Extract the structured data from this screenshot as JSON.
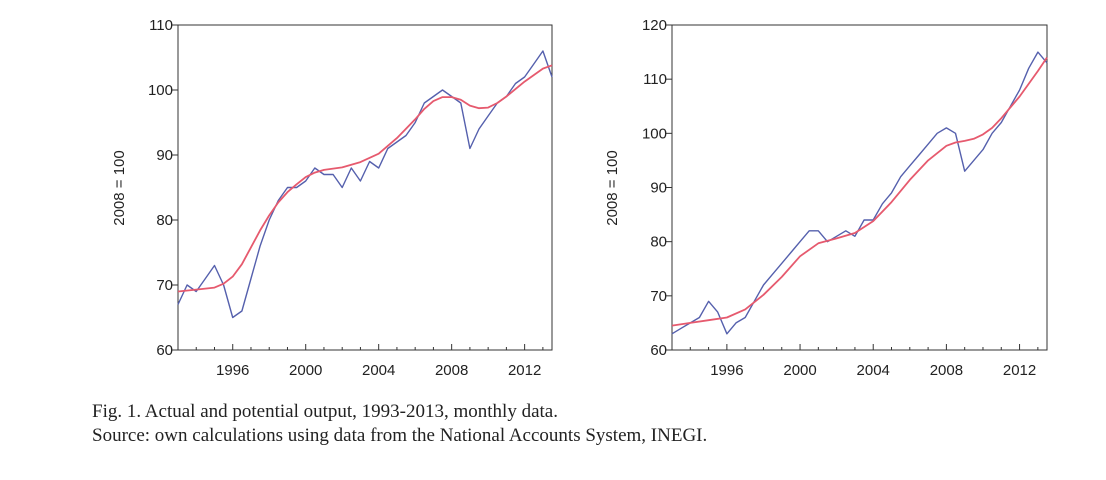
{
  "chart_data": [
    {
      "type": "line",
      "title": "",
      "xlabel": "",
      "ylabel": "2008 = 100",
      "xlim": [
        1993,
        2013.5
      ],
      "ylim": [
        60,
        110
      ],
      "xticks": [
        "1996",
        "2000",
        "2004",
        "2008",
        "2012"
      ],
      "yticks": [
        "60",
        "70",
        "80",
        "90",
        "100",
        "110"
      ],
      "series": [
        {
          "name": "Actual output",
          "color": "#5560ad",
          "x": [
            1993.0,
            1993.5,
            1994.0,
            1994.5,
            1995.0,
            1995.5,
            1996.0,
            1996.5,
            1997.0,
            1997.5,
            1998.0,
            1998.5,
            1999.0,
            1999.5,
            2000.0,
            2000.5,
            2001.0,
            2001.5,
            2002.0,
            2002.5,
            2003.0,
            2003.5,
            2004.0,
            2004.5,
            2005.0,
            2005.5,
            2006.0,
            2006.5,
            2007.0,
            2007.5,
            2008.0,
            2008.5,
            2009.0,
            2009.5,
            2010.0,
            2010.5,
            2011.0,
            2011.5,
            2012.0,
            2012.5,
            2013.0,
            2013.5
          ],
          "values": [
            67,
            70,
            69,
            71,
            73,
            70,
            65,
            66,
            71,
            76,
            80,
            83,
            85,
            85,
            86,
            88,
            87,
            87,
            85,
            88,
            86,
            89,
            88,
            91,
            92,
            93,
            95,
            98,
            99,
            100,
            99,
            98,
            91,
            94,
            96,
            98,
            99,
            101,
            102,
            104,
            106,
            102
          ]
        },
        {
          "name": "Potential output",
          "color": "#e65a6e",
          "x": [
            1993.0,
            1994.0,
            1995.0,
            1995.5,
            1996.0,
            1996.5,
            1997.0,
            1997.5,
            1998.0,
            1998.5,
            1999.0,
            1999.5,
            2000.0,
            2000.5,
            2001.0,
            2002.0,
            2003.0,
            2004.0,
            2005.0,
            2006.0,
            2006.5,
            2007.0,
            2007.5,
            2008.0,
            2008.5,
            2009.0,
            2009.5,
            2010.0,
            2010.5,
            2011.0,
            2012.0,
            2013.0,
            2013.5
          ],
          "values": [
            69,
            69.3,
            69.6,
            70.2,
            71.3,
            73.2,
            75.8,
            78.4,
            80.7,
            82.7,
            84.3,
            85.5,
            86.6,
            87.3,
            87.7,
            88.1,
            88.9,
            90.2,
            92.6,
            95.5,
            97.1,
            98.3,
            98.9,
            98.9,
            98.5,
            97.6,
            97.2,
            97.3,
            98.0,
            99.0,
            101.3,
            103.3,
            103.8
          ]
        }
      ]
    },
    {
      "type": "line",
      "title": "",
      "xlabel": "",
      "ylabel": "2008 = 100",
      "xlim": [
        1993,
        2013.5
      ],
      "ylim": [
        60,
        120
      ],
      "xticks": [
        "1996",
        "2000",
        "2004",
        "2008",
        "2012"
      ],
      "yticks": [
        "60",
        "70",
        "80",
        "90",
        "100",
        "110",
        "120"
      ],
      "series": [
        {
          "name": "Actual output",
          "color": "#5560ad",
          "x": [
            1993.0,
            1993.5,
            1994.0,
            1994.5,
            1995.0,
            1995.5,
            1996.0,
            1996.5,
            1997.0,
            1997.5,
            1998.0,
            1998.5,
            1999.0,
            1999.5,
            2000.0,
            2000.5,
            2001.0,
            2001.5,
            2002.0,
            2002.5,
            2003.0,
            2003.5,
            2004.0,
            2004.5,
            2005.0,
            2005.5,
            2006.0,
            2006.5,
            2007.0,
            2007.5,
            2008.0,
            2008.5,
            2009.0,
            2009.5,
            2010.0,
            2010.5,
            2011.0,
            2011.5,
            2012.0,
            2012.5,
            2013.0,
            2013.5
          ],
          "values": [
            63,
            64,
            65,
            66,
            69,
            67,
            63,
            65,
            66,
            69,
            72,
            74,
            76,
            78,
            80,
            82,
            82,
            80,
            81,
            82,
            81,
            84,
            84,
            87,
            89,
            92,
            94,
            96,
            98,
            100,
            101,
            100,
            93,
            95,
            97,
            100,
            102,
            105,
            108,
            112,
            115,
            113
          ]
        },
        {
          "name": "Potential output",
          "color": "#e65a6e",
          "x": [
            1993.0,
            1994.0,
            1995.0,
            1996.0,
            1997.0,
            1998.0,
            1999.0,
            2000.0,
            2001.0,
            2002.0,
            2003.0,
            2004.0,
            2005.0,
            2006.0,
            2007.0,
            2008.0,
            2008.5,
            2009.0,
            2009.5,
            2010.0,
            2010.5,
            2011.0,
            2012.0,
            2013.0,
            2013.5
          ],
          "values": [
            64.5,
            65,
            65.5,
            66,
            67.5,
            70.2,
            73.5,
            77.3,
            79.7,
            80.6,
            81.6,
            83.8,
            87.3,
            91.4,
            95.0,
            97.7,
            98.3,
            98.6,
            99.0,
            99.8,
            101.0,
            102.8,
            106.8,
            111.5,
            114.0
          ]
        }
      ]
    }
  ],
  "caption": {
    "line1": "Fig. 1. Actual and potential output, 1993-2013, monthly data.",
    "line2": "Source: own calculations using data from the National Accounts System, INEGI."
  }
}
